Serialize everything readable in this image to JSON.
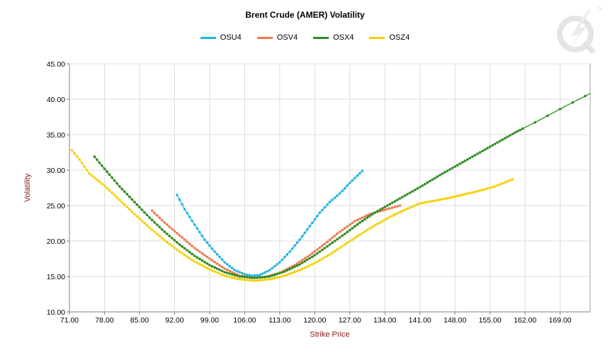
{
  "chart_data": {
    "type": "line",
    "title": "Brent Crude (AMER) Volatility",
    "xlabel": "Strike Price",
    "ylabel": "Volatility",
    "xlim": [
      71,
      175
    ],
    "ylim": [
      10,
      45
    ],
    "x_ticks": [
      "71.00",
      "78.00",
      "85.00",
      "92.00",
      "99.00",
      "106.00",
      "113.00",
      "120.00",
      "127.00",
      "134.00",
      "141.00",
      "148.00",
      "155.00",
      "162.00",
      "169.00"
    ],
    "y_ticks": [
      "10.00",
      "15.00",
      "20.00",
      "25.00",
      "30.00",
      "35.00",
      "40.00",
      "45.00"
    ],
    "grid": true,
    "legend_position": "top",
    "series": [
      {
        "name": "OSU4",
        "color": "#1EB4E6",
        "point_spacing": 0.5,
        "points": [
          [
            92.5,
            26.5
          ],
          [
            94,
            24.5
          ],
          [
            96,
            22.3
          ],
          [
            98,
            20.2
          ],
          [
            100,
            18.5
          ],
          [
            102,
            17.0
          ],
          [
            104,
            15.9
          ],
          [
            106,
            15.3
          ],
          [
            107.5,
            15.1
          ],
          [
            109,
            15.2
          ],
          [
            111,
            15.9
          ],
          [
            113,
            17.0
          ],
          [
            115,
            18.5
          ],
          [
            117,
            20.2
          ],
          [
            119,
            22.1
          ],
          [
            121,
            24.0
          ],
          [
            123,
            25.5
          ],
          [
            125,
            26.7
          ],
          [
            127,
            28.2
          ],
          [
            129.5,
            29.9
          ]
        ]
      },
      {
        "name": "OSV4",
        "color": "#F07850",
        "point_spacing": 0.5,
        "points": [
          [
            87.5,
            24.3
          ],
          [
            90,
            22.6
          ],
          [
            93,
            20.8
          ],
          [
            96,
            19.0
          ],
          [
            99,
            17.5
          ],
          [
            102,
            16.1
          ],
          [
            105,
            15.1
          ],
          [
            107.5,
            14.8
          ],
          [
            110,
            14.9
          ],
          [
            113,
            15.5
          ],
          [
            116,
            16.6
          ],
          [
            119,
            18.0
          ],
          [
            122,
            19.6
          ],
          [
            125,
            21.3
          ],
          [
            128,
            22.8
          ],
          [
            131,
            23.8
          ],
          [
            134,
            24.4
          ],
          [
            137,
            25.0
          ]
        ]
      },
      {
        "name": "OSX4",
        "color": "#2E8B22",
        "point_spacing": 0.5,
        "sparse_from": 161.5,
        "points": [
          [
            76,
            31.9
          ],
          [
            78,
            30.2
          ],
          [
            81,
            27.7
          ],
          [
            84,
            25.5
          ],
          [
            87,
            23.3
          ],
          [
            90,
            21.3
          ],
          [
            93,
            19.5
          ],
          [
            96,
            17.9
          ],
          [
            99,
            16.6
          ],
          [
            102,
            15.6
          ],
          [
            105,
            15.0
          ],
          [
            108,
            14.8
          ],
          [
            111,
            15.0
          ],
          [
            114,
            15.7
          ],
          [
            117,
            16.7
          ],
          [
            120,
            18.0
          ],
          [
            123,
            19.5
          ],
          [
            126,
            21.0
          ],
          [
            129,
            22.6
          ],
          [
            132,
            24.0
          ],
          [
            135,
            25.2
          ],
          [
            138,
            26.4
          ],
          [
            141,
            27.6
          ],
          [
            145,
            29.3
          ],
          [
            150,
            31.3
          ],
          [
            155,
            33.3
          ],
          [
            160,
            35.3
          ],
          [
            165,
            37.1
          ],
          [
            170,
            39.0
          ],
          [
            175,
            40.8
          ]
        ]
      },
      {
        "name": "OSZ4",
        "color": "#F5D000",
        "point_spacing": 0.5,
        "points": [
          [
            71.5,
            32.8
          ],
          [
            73,
            31.5
          ],
          [
            75,
            29.5
          ],
          [
            78,
            27.8
          ],
          [
            81,
            25.8
          ],
          [
            84,
            23.8
          ],
          [
            87,
            21.9
          ],
          [
            90,
            20.1
          ],
          [
            93,
            18.5
          ],
          [
            96,
            17.1
          ],
          [
            99,
            16.0
          ],
          [
            102,
            15.1
          ],
          [
            105,
            14.6
          ],
          [
            108,
            14.4
          ],
          [
            111,
            14.6
          ],
          [
            114,
            15.1
          ],
          [
            117,
            15.9
          ],
          [
            120,
            16.9
          ],
          [
            123,
            18.1
          ],
          [
            126,
            19.5
          ],
          [
            129,
            20.9
          ],
          [
            132,
            22.2
          ],
          [
            135,
            23.4
          ],
          [
            138,
            24.4
          ],
          [
            141,
            25.3
          ],
          [
            144,
            25.7
          ],
          [
            147,
            26.1
          ],
          [
            150,
            26.6
          ],
          [
            153,
            27.1
          ],
          [
            156,
            27.7
          ],
          [
            159.5,
            28.7
          ]
        ]
      }
    ]
  }
}
